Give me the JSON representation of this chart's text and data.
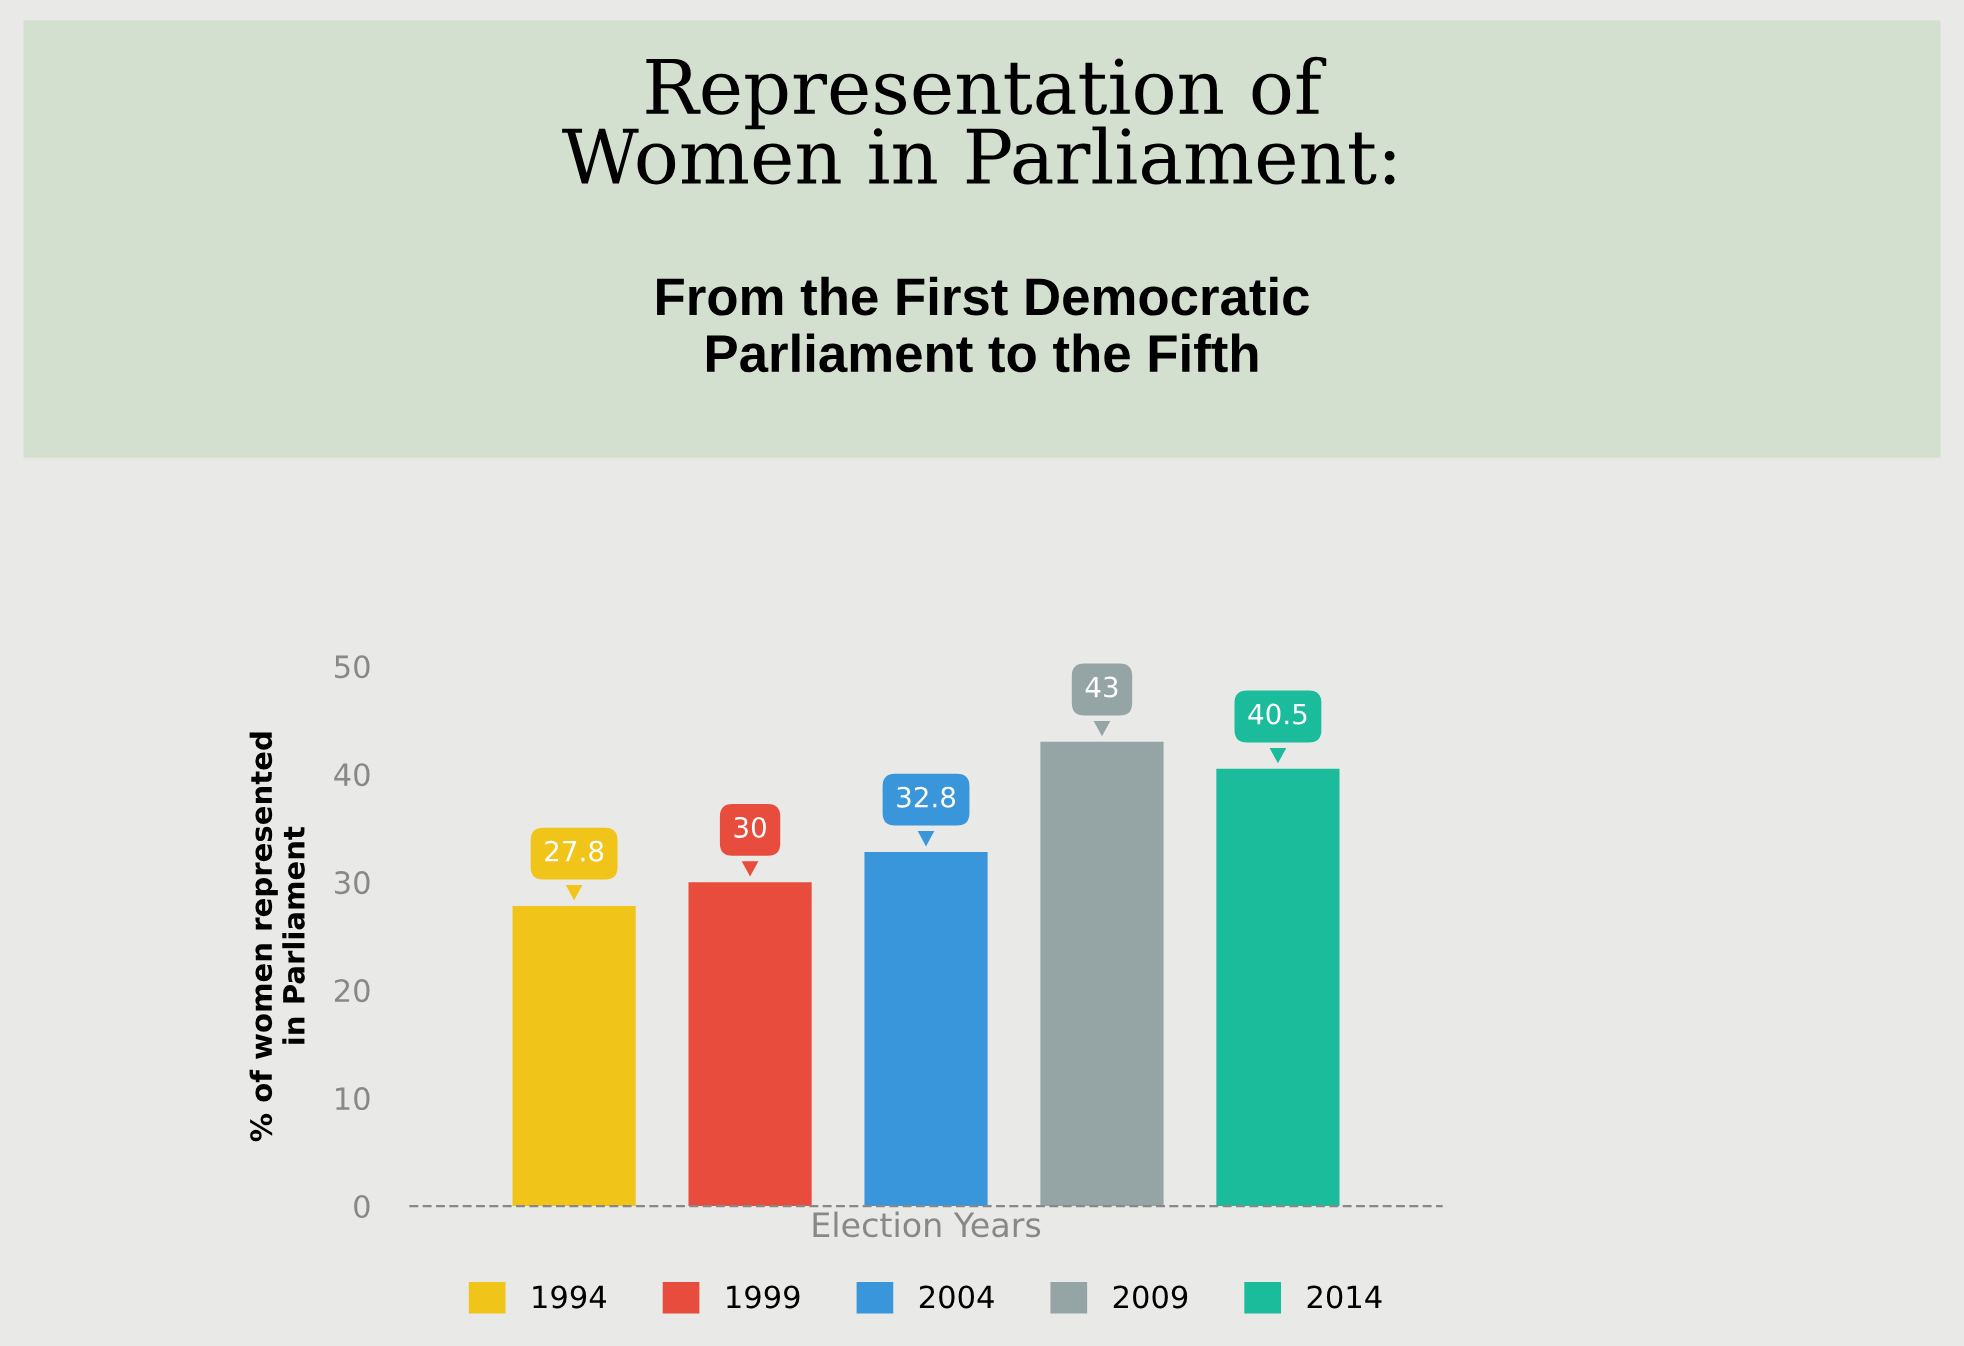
{
  "chart_data": {
    "type": "bar",
    "title": "Representation of\nWomen in Parliament:",
    "subtitle": "From the First Democratic\nParliament to the Fifth",
    "xlabel": "Election Years",
    "ylabel": "% of women represented\nin Parliament",
    "categories": [
      null,
      null,
      null,
      null,
      null
    ],
    "series": [
      {
        "name": "1994",
        "color": "#f0c419",
        "values": [
          27.8,
          null,
          null,
          null,
          null
        ]
      },
      {
        "name": "1999",
        "color": "#e74c3c",
        "values": [
          null,
          30,
          null,
          null,
          null
        ]
      },
      {
        "name": "2004",
        "color": "#3a96db",
        "values": [
          null,
          null,
          32.8,
          null,
          null
        ]
      },
      {
        "name": "2009",
        "color": "#95a5a6",
        "values": [
          null,
          null,
          null,
          43,
          null
        ]
      },
      {
        "name": "2014",
        "color": "#1abc9c",
        "values": [
          null,
          null,
          null,
          null,
          40.5
        ]
      }
    ],
    "ylim": [
      0,
      50
    ],
    "yticks": [
      0,
      10,
      20,
      30,
      40,
      50
    ],
    "tick_labels": "y",
    "data_labels": true,
    "legend": "bottom",
    "grid": false
  }
}
